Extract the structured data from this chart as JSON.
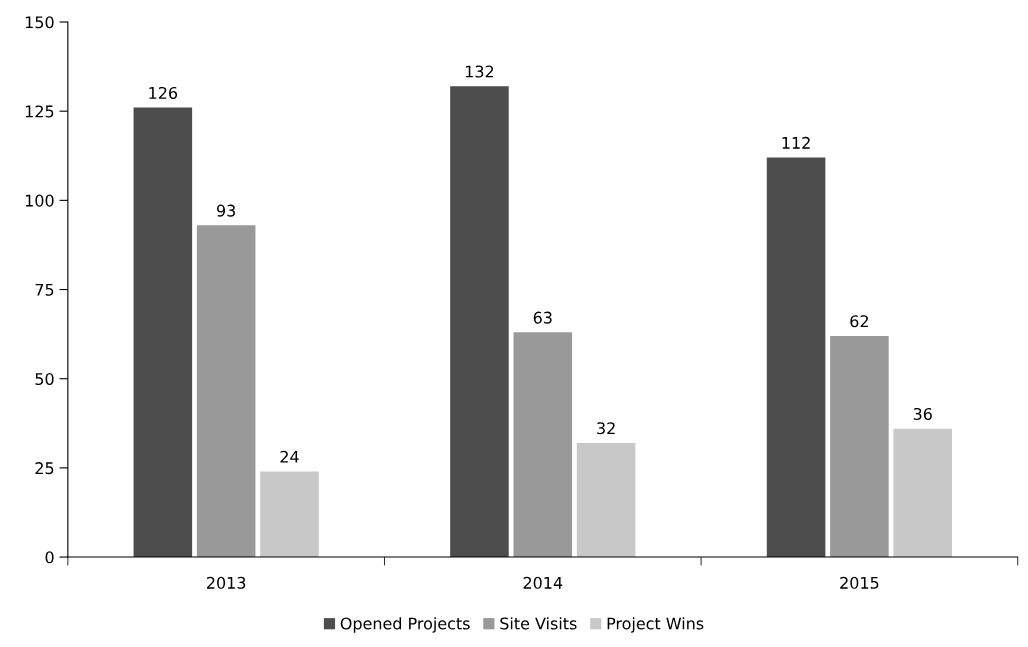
{
  "chart_data": {
    "type": "bar",
    "categories": [
      "2013",
      "2014",
      "2015"
    ],
    "series": [
      {
        "name": "Opened Projects",
        "color": "#4d4d4d",
        "values": [
          126,
          132,
          112
        ]
      },
      {
        "name": "Site Visits",
        "color": "#999999",
        "values": [
          93,
          63,
          62
        ]
      },
      {
        "name": "Project Wins",
        "color": "#c8c8c8",
        "values": [
          24,
          32,
          36
        ]
      }
    ],
    "ylim": [
      0,
      150
    ],
    "yticks": [
      0,
      25,
      50,
      75,
      100,
      125,
      150
    ],
    "data_labels": true,
    "legend": "bottom",
    "grid": false
  }
}
